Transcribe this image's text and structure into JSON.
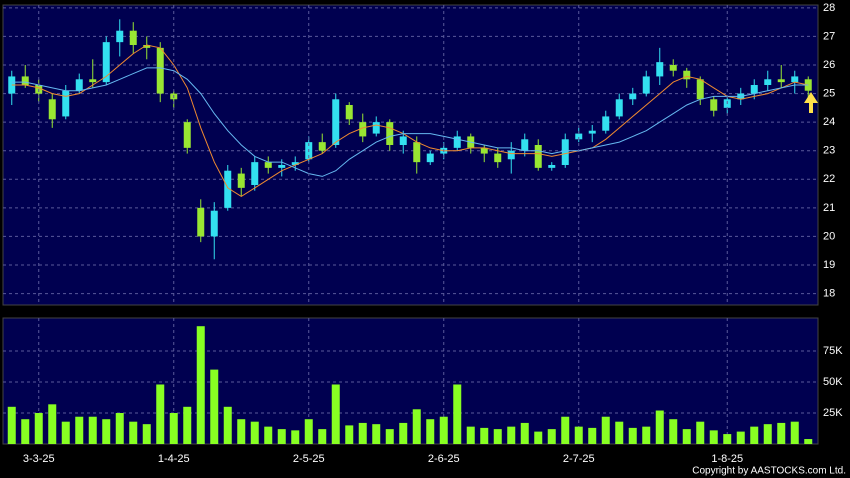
{
  "chart_data": [
    {
      "type": "candlestick",
      "up_color": "#33e0f0",
      "down_color": "#99e632",
      "open": [
        25.0,
        25.6,
        25.3,
        24.8,
        24.2,
        25.1,
        25.5,
        25.4,
        26.8,
        27.2,
        26.7,
        26.6,
        25.0,
        24.0,
        21.0,
        20.0,
        21.0,
        22.2,
        21.8,
        22.6,
        22.4,
        22.5,
        22.7,
        23.3,
        23.2,
        24.6,
        24.0,
        23.6,
        24.0,
        23.2,
        23.3,
        22.6,
        22.9,
        23.1,
        23.5,
        23.1,
        22.9,
        22.7,
        23.0,
        23.2,
        22.4,
        22.5,
        23.4,
        23.6,
        23.7,
        24.2,
        24.8,
        25.0,
        25.6,
        26.0,
        25.8,
        25.5,
        24.8,
        24.5,
        24.8,
        25.0,
        25.3,
        25.5,
        25.4,
        25.5
      ],
      "high": [
        25.8,
        26.0,
        25.5,
        25.0,
        25.3,
        25.7,
        26.2,
        27.0,
        27.6,
        27.5,
        27.0,
        26.8,
        25.1,
        24.1,
        21.3,
        21.2,
        22.5,
        22.4,
        22.8,
        22.8,
        22.7,
        22.8,
        23.5,
        23.6,
        25.0,
        24.7,
        24.3,
        24.2,
        24.1,
        23.7,
        23.5,
        23.0,
        23.3,
        23.7,
        23.6,
        23.2,
        23.1,
        23.3,
        23.6,
        23.4,
        22.6,
        23.6,
        23.8,
        23.9,
        24.4,
        25.0,
        25.2,
        25.8,
        26.6,
        26.2,
        25.9,
        25.6,
        24.9,
        24.9,
        25.2,
        25.5,
        25.8,
        26.0,
        25.8,
        25.6
      ],
      "low": [
        24.6,
        25.2,
        24.7,
        23.8,
        24.1,
        25.0,
        25.2,
        25.3,
        26.3,
        26.4,
        26.2,
        24.7,
        24.5,
        22.9,
        19.8,
        19.2,
        20.9,
        21.4,
        21.6,
        22.2,
        22.1,
        22.3,
        22.6,
        22.9,
        23.1,
        23.9,
        23.3,
        23.5,
        23.0,
        22.9,
        22.2,
        22.5,
        22.7,
        23.0,
        22.9,
        22.6,
        22.4,
        22.2,
        22.8,
        22.3,
        22.3,
        22.4,
        23.3,
        23.3,
        23.6,
        24.1,
        24.6,
        24.9,
        25.3,
        25.6,
        25.2,
        24.6,
        24.2,
        24.3,
        24.6,
        24.8,
        25.1,
        25.2,
        25.0,
        24.8
      ],
      "close": [
        25.6,
        25.3,
        25.0,
        24.1,
        25.1,
        25.5,
        25.4,
        26.8,
        27.2,
        26.7,
        26.6,
        25.0,
        24.8,
        23.1,
        20.0,
        20.9,
        22.3,
        21.7,
        22.6,
        22.4,
        22.5,
        22.6,
        23.3,
        23.0,
        24.8,
        24.1,
        23.5,
        24.0,
        23.2,
        23.5,
        22.6,
        22.9,
        23.1,
        23.5,
        23.1,
        22.9,
        22.6,
        23.0,
        23.4,
        22.4,
        22.5,
        23.4,
        23.6,
        23.7,
        24.2,
        24.8,
        25.0,
        25.6,
        26.1,
        25.8,
        25.5,
        24.8,
        24.4,
        24.8,
        25.0,
        25.3,
        25.5,
        25.4,
        25.6,
        25.1
      ],
      "lines": [
        {
          "color": "#f08a30",
          "values": [
            25.3,
            25.3,
            25.2,
            25.0,
            24.9,
            25.0,
            25.3,
            25.6,
            26.0,
            26.4,
            26.7,
            26.6,
            26.0,
            25.2,
            23.8,
            22.6,
            21.7,
            21.4,
            21.7,
            22.0,
            22.3,
            22.5,
            22.7,
            22.9,
            23.3,
            23.6,
            23.8,
            23.9,
            23.8,
            23.6,
            23.3,
            23.1,
            23.0,
            23.0,
            23.1,
            23.1,
            23.0,
            22.9,
            22.9,
            22.9,
            22.8,
            22.9,
            23.0,
            23.1,
            23.4,
            23.8,
            24.2,
            24.6,
            25.0,
            25.4,
            25.6,
            25.5,
            25.2,
            24.9,
            24.8,
            24.9,
            25.0,
            25.2,
            25.4,
            25.3
          ]
        },
        {
          "color": "#66b8f0",
          "values": [
            25.4,
            25.4,
            25.3,
            25.2,
            25.1,
            25.1,
            25.2,
            25.3,
            25.5,
            25.7,
            25.9,
            25.9,
            25.8,
            25.5,
            25.0,
            24.3,
            23.7,
            23.2,
            22.8,
            22.6,
            22.6,
            22.4,
            22.2,
            22.1,
            22.3,
            22.7,
            23.0,
            23.3,
            23.5,
            23.6,
            23.6,
            23.6,
            23.5,
            23.4,
            23.3,
            23.2,
            23.1,
            23.1,
            23.0,
            23.0,
            22.9,
            23.0,
            23.0,
            23.1,
            23.2,
            23.3,
            23.5,
            23.7,
            24.0,
            24.3,
            24.6,
            24.8,
            24.9,
            24.9,
            24.9,
            25.0,
            25.1,
            25.2,
            25.3,
            25.3
          ]
        }
      ],
      "ylim": [
        17.6,
        28.1
      ],
      "yticks": [
        18,
        19,
        20,
        21,
        22,
        23,
        24,
        25,
        26,
        27,
        28
      ],
      "grid": true
    },
    {
      "type": "bar",
      "color": "#88ff22",
      "categories": [
        null,
        null,
        "3-3-25",
        null,
        null,
        null,
        null,
        null,
        null,
        null,
        null,
        null,
        "1-4-25",
        null,
        null,
        null,
        null,
        null,
        null,
        null,
        null,
        null,
        "2-5-25",
        null,
        null,
        null,
        null,
        null,
        null,
        null,
        null,
        null,
        "2-6-25",
        null,
        null,
        null,
        null,
        null,
        null,
        null,
        null,
        null,
        "2-7-25",
        null,
        null,
        null,
        null,
        null,
        null,
        null,
        null,
        null,
        null,
        "1-8-25",
        null,
        null,
        null,
        null,
        null,
        null
      ],
      "values": [
        30000,
        20000,
        25000,
        32000,
        18000,
        22000,
        22000,
        20000,
        25000,
        18000,
        16000,
        48000,
        25000,
        30000,
        95000,
        60000,
        30000,
        20000,
        18000,
        14000,
        12000,
        11000,
        20000,
        12000,
        48000,
        15000,
        17000,
        16000,
        12000,
        17000,
        28000,
        20000,
        22000,
        48000,
        14000,
        13000,
        12000,
        14000,
        17000,
        10000,
        12000,
        22000,
        14000,
        13000,
        22000,
        18000,
        13000,
        14000,
        27000,
        20000,
        12000,
        18000,
        11000,
        8000,
        10000,
        14000,
        16000,
        17000,
        18000,
        4000
      ],
      "ylim": [
        0,
        100000
      ],
      "yticks": [
        {
          "value": 25000,
          "label": "25K"
        },
        {
          "value": 50000,
          "label": "50K"
        },
        {
          "value": 75000,
          "label": "75K"
        }
      ],
      "grid": true,
      "footer": "Copyright by AASTOCKS.com Ltd."
    }
  ]
}
